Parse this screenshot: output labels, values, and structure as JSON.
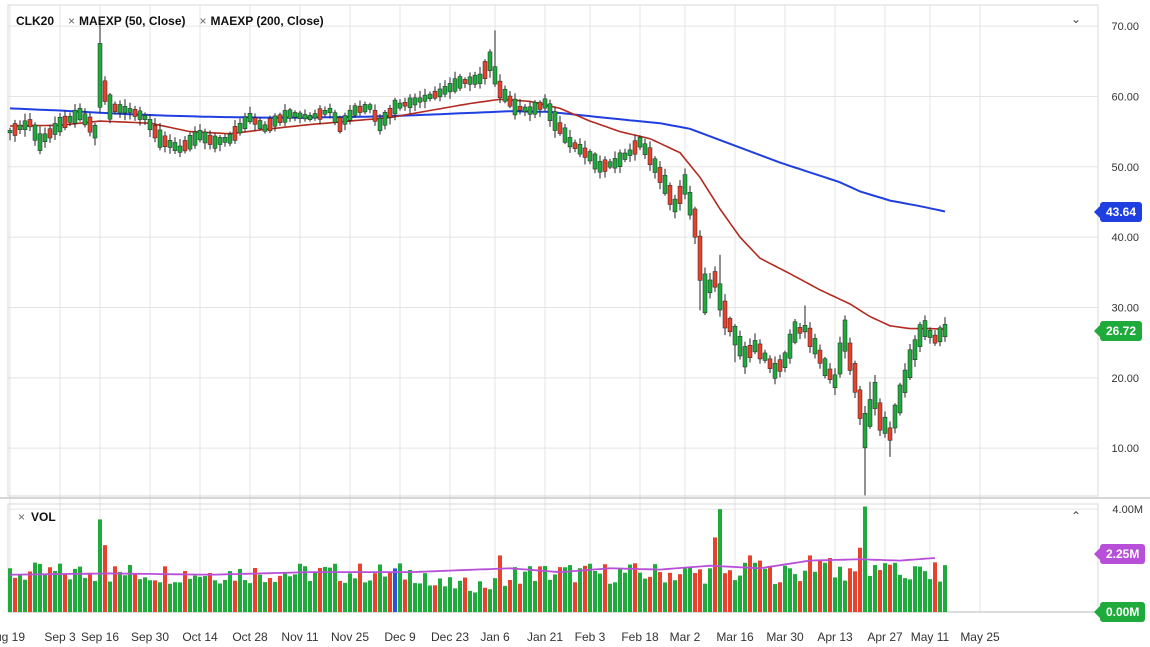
{
  "colors": {
    "up": "#1faa3c",
    "down": "#e8412c",
    "ma50": "#b22a20",
    "ma200": "#1f3fe0",
    "vol_ma": "#b84fd8",
    "grid": "#e4e4e4",
    "vol_highlight": "#2b54d8"
  },
  "legend": {
    "symbol": "CLK20",
    "ma50_label": "MAEXP (50, Close)",
    "ma200_label": "MAEXP (200, Close)",
    "close_glyph": "×"
  },
  "volume_legend": {
    "label": "VOL",
    "close_glyph": "×"
  },
  "controls": {
    "collapse_price": "⌄",
    "collapse_volume": "⌃"
  },
  "tags": {
    "ma200_value": "43.64",
    "last_price": "26.72",
    "vol_ma_value": "2.25M",
    "vol_zero": "0.00M"
  },
  "chart_data": {
    "type": "candlestick",
    "title": "CLK20",
    "price_axis": {
      "ticks": [
        "70.00",
        "60.00",
        "50.00",
        "40.00",
        "30.00",
        "20.00",
        "10.00"
      ],
      "range": [
        3.2,
        73
      ]
    },
    "volume_axis": {
      "ticks": [
        "4.00M"
      ],
      "max_label": "4.00M",
      "range": [
        0,
        4.2
      ]
    },
    "x_axis": {
      "labels": [
        "ug 19",
        "Sep 3",
        "Sep 16",
        "Sep 30",
        "Oct 14",
        "Oct 28",
        "Nov 11",
        "Nov 25",
        "Dec 9",
        "Dec 23",
        "Jan 6",
        "Jan 21",
        "Feb 3",
        "Feb 18",
        "Mar 2",
        "Mar 16",
        "Mar 30",
        "Apr 13",
        "Apr 27",
        "May 11",
        "May 25"
      ],
      "label_index": [
        0,
        10,
        18,
        28,
        38,
        48,
        58,
        68,
        78,
        88,
        97,
        107,
        116,
        126,
        135,
        145,
        155,
        165,
        175,
        184,
        194
      ]
    },
    "price_anchors": [
      [
        0,
        55.0
      ],
      [
        4,
        56.2
      ],
      [
        6,
        53.5
      ],
      [
        10,
        56.0
      ],
      [
        14,
        57.5
      ],
      [
        16,
        56.0
      ],
      [
        17,
        55.0
      ],
      [
        18,
        63.0
      ],
      [
        20,
        58.5
      ],
      [
        24,
        58.0
      ],
      [
        27,
        57.0
      ],
      [
        30,
        54.0
      ],
      [
        34,
        52.5
      ],
      [
        38,
        54.5
      ],
      [
        41,
        53.5
      ],
      [
        44,
        54.0
      ],
      [
        48,
        57.0
      ],
      [
        51,
        55.5
      ],
      [
        53,
        56.5
      ],
      [
        56,
        57.5
      ],
      [
        60,
        57.0
      ],
      [
        64,
        58.0
      ],
      [
        66,
        56.0
      ],
      [
        69,
        58.0
      ],
      [
        72,
        58.5
      ],
      [
        74,
        56.0
      ],
      [
        77,
        58.5
      ],
      [
        82,
        59.5
      ],
      [
        86,
        60.5
      ],
      [
        90,
        62.0
      ],
      [
        94,
        62.5
      ],
      [
        96,
        65.0
      ],
      [
        98,
        61.0
      ],
      [
        101,
        58.5
      ],
      [
        104,
        58.0
      ],
      [
        107,
        59.0
      ],
      [
        109,
        56.5
      ],
      [
        112,
        53.5
      ],
      [
        116,
        51.5
      ],
      [
        118,
        50.0
      ],
      [
        121,
        50.5
      ],
      [
        124,
        52.0
      ],
      [
        126,
        53.5
      ],
      [
        128,
        51.5
      ],
      [
        131,
        47.5
      ],
      [
        133,
        44.5
      ],
      [
        135,
        47.5
      ],
      [
        137,
        42.0
      ],
      [
        139,
        32.0
      ],
      [
        141,
        34.0
      ],
      [
        143,
        29.0
      ],
      [
        145,
        26.0
      ],
      [
        147,
        23.0
      ],
      [
        149,
        24.5
      ],
      [
        151,
        23.0
      ],
      [
        153,
        21.0
      ],
      [
        155,
        22.5
      ],
      [
        157,
        26.5
      ],
      [
        159,
        27.0
      ],
      [
        161,
        24.5
      ],
      [
        163,
        21.5
      ],
      [
        165,
        19.5
      ],
      [
        167,
        26.0
      ],
      [
        169,
        20.0
      ],
      [
        171,
        12.5
      ],
      [
        173,
        17.5
      ],
      [
        174,
        14.5
      ],
      [
        176,
        12.0
      ],
      [
        178,
        17.0
      ],
      [
        180,
        22.0
      ],
      [
        182,
        26.0
      ],
      [
        183,
        27.0
      ],
      [
        185,
        25.5
      ],
      [
        187,
        26.72
      ]
    ],
    "down_bars": [
      1,
      4,
      8,
      11,
      16,
      19,
      21,
      25,
      29,
      31,
      35,
      40,
      45,
      49,
      52,
      54,
      62,
      66,
      70,
      73,
      76,
      79,
      85,
      91,
      95,
      98,
      100,
      102,
      106,
      110,
      113,
      115,
      119,
      125,
      128,
      130,
      132,
      134,
      137,
      138,
      141,
      143,
      144,
      148,
      150,
      152,
      154,
      158,
      160,
      162,
      164,
      168,
      169,
      170,
      174,
      176,
      185
    ],
    "spikes": {
      "high": [
        [
          18,
          3
        ],
        [
          97,
          4.5
        ],
        [
          142,
          3.5
        ],
        [
          159,
          2
        ],
        [
          172,
          2
        ]
      ],
      "low": [
        [
          138,
          4
        ],
        [
          145,
          2
        ],
        [
          171,
          6.5
        ],
        [
          176,
          2
        ]
      ]
    },
    "ma50_anchors": [
      [
        0,
        55.8
      ],
      [
        10,
        55.9
      ],
      [
        18,
        56.5
      ],
      [
        28,
        56.2
      ],
      [
        36,
        55.0
      ],
      [
        44,
        54.7
      ],
      [
        52,
        55.4
      ],
      [
        60,
        56.0
      ],
      [
        68,
        56.5
      ],
      [
        76,
        57.0
      ],
      [
        84,
        58.0
      ],
      [
        92,
        59.0
      ],
      [
        98,
        59.6
      ],
      [
        104,
        59.3
      ],
      [
        110,
        58.3
      ],
      [
        116,
        56.5
      ],
      [
        122,
        55.0
      ],
      [
        128,
        54.0
      ],
      [
        134,
        52.0
      ],
      [
        138,
        48.5
      ],
      [
        142,
        44.0
      ],
      [
        146,
        40.0
      ],
      [
        150,
        37.0
      ],
      [
        156,
        34.8
      ],
      [
        162,
        32.5
      ],
      [
        168,
        30.5
      ],
      [
        172,
        28.7
      ],
      [
        176,
        27.4
      ],
      [
        180,
        27.0
      ],
      [
        184,
        27.0
      ],
      [
        187,
        26.9
      ]
    ],
    "ma200_anchors": [
      [
        0,
        58.3
      ],
      [
        10,
        58.0
      ],
      [
        20,
        57.6
      ],
      [
        30,
        57.3
      ],
      [
        40,
        57.1
      ],
      [
        50,
        57.0
      ],
      [
        60,
        57.0
      ],
      [
        70,
        57.1
      ],
      [
        80,
        57.3
      ],
      [
        90,
        57.6
      ],
      [
        100,
        57.9
      ],
      [
        108,
        57.8
      ],
      [
        116,
        57.2
      ],
      [
        124,
        56.6
      ],
      [
        130,
        56.2
      ],
      [
        136,
        55.4
      ],
      [
        142,
        53.8
      ],
      [
        148,
        52.2
      ],
      [
        154,
        50.6
      ],
      [
        160,
        49.2
      ],
      [
        166,
        47.8
      ],
      [
        170,
        46.5
      ],
      [
        176,
        45.2
      ],
      [
        182,
        44.4
      ],
      [
        186,
        43.8
      ],
      [
        187,
        43.64
      ]
    ],
    "volume": {
      "base_level": 1.55,
      "big_bars": [
        [
          18,
          3.6
        ],
        [
          19,
          2.6
        ],
        [
          98,
          2.2
        ],
        [
          141,
          2.9
        ],
        [
          142,
          4.0
        ],
        [
          148,
          2.2
        ],
        [
          150,
          2.0
        ],
        [
          155,
          1.8
        ],
        [
          160,
          2.2
        ],
        [
          162,
          2.0
        ],
        [
          164,
          2.1
        ],
        [
          171,
          4.1
        ],
        [
          170,
          2.5
        ],
        [
          168,
          1.7
        ],
        [
          175,
          1.9
        ]
      ],
      "highlight_bar": 77,
      "ma_anchors": [
        [
          0,
          1.45
        ],
        [
          20,
          1.5
        ],
        [
          40,
          1.45
        ],
        [
          60,
          1.55
        ],
        [
          80,
          1.55
        ],
        [
          100,
          1.7
        ],
        [
          110,
          1.55
        ],
        [
          120,
          1.7
        ],
        [
          130,
          1.65
        ],
        [
          140,
          1.8
        ],
        [
          150,
          1.7
        ],
        [
          160,
          2.0
        ],
        [
          170,
          2.05
        ],
        [
          178,
          2.0
        ],
        [
          185,
          2.1
        ]
      ]
    }
  }
}
